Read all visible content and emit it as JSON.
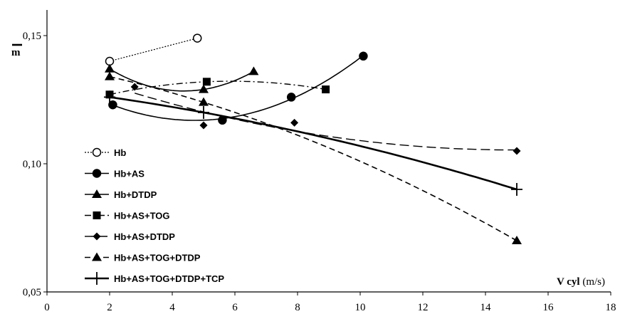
{
  "chart_data": {
    "type": "line",
    "title": "",
    "ylabel": "m",
    "xlabel_main": "V cyl",
    "xlabel_unit": "(m/s)",
    "xlim": [
      0,
      18
    ],
    "ylim": [
      0.05,
      0.16
    ],
    "x_ticks": [
      0,
      2,
      4,
      6,
      8,
      10,
      12,
      14,
      16,
      18
    ],
    "x_tick_labels": [
      "0",
      "2",
      "4",
      "6",
      "8",
      "10",
      "12",
      "14",
      "16",
      "18"
    ],
    "y_ticks": [
      0.05,
      0.1,
      0.15
    ],
    "y_tick_labels": [
      "0,05",
      "0,10",
      "0,15"
    ],
    "grid": false,
    "legend_position": "bottom-left",
    "series": [
      {
        "name": "Hb",
        "dash": "dotted",
        "marker": "circle-open",
        "width": 1.2,
        "trend": "linear",
        "x": [
          2,
          4.8
        ],
        "y": [
          0.14,
          0.149
        ]
      },
      {
        "name": "Hb+AS",
        "dash": "solid",
        "marker": "circle",
        "width": 1.6,
        "trend": "smooth",
        "x": [
          2.1,
          5.6,
          7.8,
          10.1
        ],
        "y": [
          0.123,
          0.117,
          0.126,
          0.142
        ]
      },
      {
        "name": "Hb+DTDP",
        "dash": "solid",
        "marker": "triangle",
        "width": 1.6,
        "trend": "smooth",
        "x": [
          2,
          5,
          6.6
        ],
        "y": [
          0.137,
          0.129,
          0.136
        ]
      },
      {
        "name": "Hb+AS+TOG",
        "dash": "dashdot",
        "marker": "square",
        "width": 1.4,
        "trend": "smooth",
        "x": [
          2,
          5.1,
          8.9
        ],
        "y": [
          0.127,
          0.132,
          0.129
        ]
      },
      {
        "name": "Hb+AS+DTDP",
        "dash": "longdash",
        "marker": "diamond",
        "width": 1.4,
        "trend": "smooth",
        "x": [
          2.8,
          5,
          7.9,
          15
        ],
        "y": [
          0.13,
          0.115,
          0.116,
          0.105
        ]
      },
      {
        "name": "Hb+AS+TOG+DTDP",
        "dash": "dashed",
        "marker": "triangle",
        "width": 1.6,
        "trend": "smooth",
        "x": [
          2,
          5,
          15
        ],
        "y": [
          0.134,
          0.124,
          0.07
        ]
      },
      {
        "name": "Hb+AS+TOG+DTDP+TCP",
        "dash": "solid",
        "marker": "plus",
        "width": 2.6,
        "trend": "smooth",
        "x": [
          2,
          5,
          15
        ],
        "y": [
          0.126,
          0.12,
          0.09
        ]
      }
    ]
  }
}
